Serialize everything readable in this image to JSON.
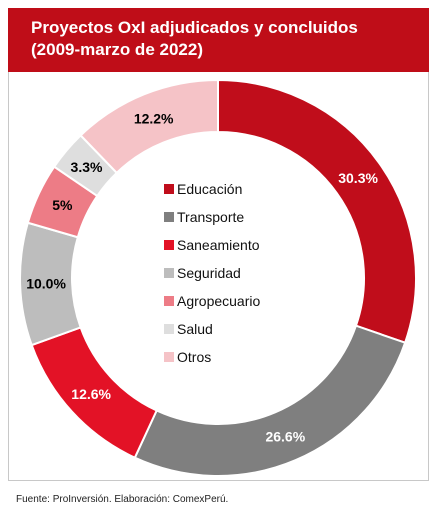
{
  "header": {
    "title_line1": "Proyectos OxI adjudicados y concluidos",
    "title_line2": "(2009-marzo de 2022)"
  },
  "source": "Fuente: ProInversión. Elaboración: ComexPerú.",
  "chart_data": {
    "type": "pie",
    "donut": true,
    "categories": [
      "Educación",
      "Transporte",
      "Saneamiento",
      "Seguridad",
      "Agropecuario",
      "Salud",
      "Otros"
    ],
    "values": [
      30.3,
      26.6,
      12.6,
      10.0,
      5.0,
      3.3,
      12.2
    ],
    "labels": [
      "30.3%",
      "26.6%",
      "12.6%",
      "10.0%",
      "5%",
      "3.3%",
      "12.2%"
    ],
    "colors": [
      "#c00d1b",
      "#7f7f7f",
      "#e31226",
      "#bdbdbd",
      "#ed7c86",
      "#dedede",
      "#f5c3c7"
    ],
    "label_colors": [
      "#ffffff",
      "#ffffff",
      "#ffffff",
      "#000000",
      "#000000",
      "#000000",
      "#000000"
    ],
    "legend_placement": "center"
  }
}
